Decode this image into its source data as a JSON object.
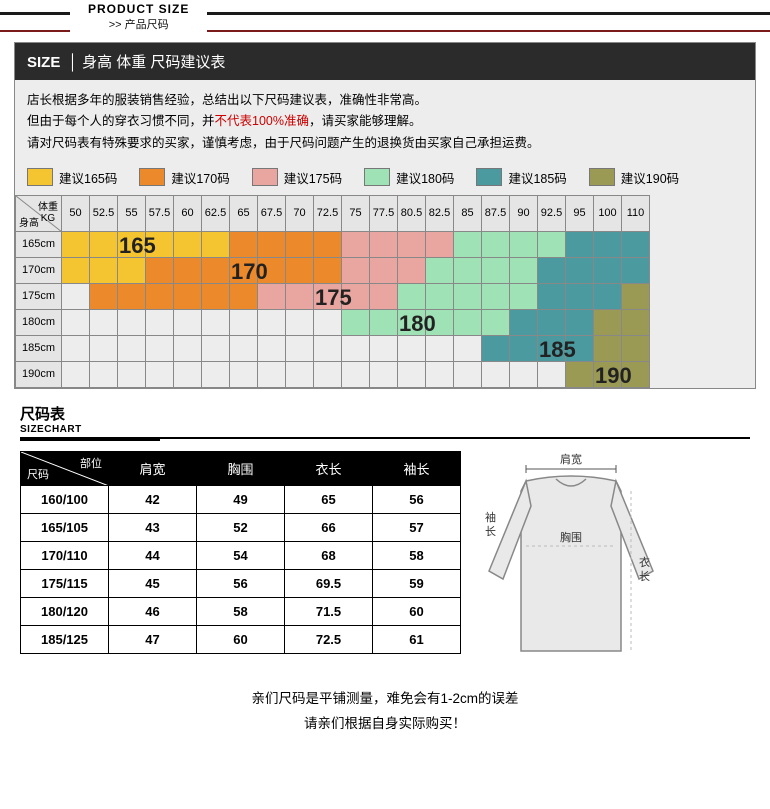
{
  "header": {
    "top": "PRODUCT SIZE",
    "sub": ">> 产品尺码"
  },
  "panel": {
    "title_label": "SIZE",
    "title_text": "身高 体重 尺码建议表",
    "desc_line1": "店长根据多年的服装销售经验，总结出以下尺码建议表，准确性非常高。",
    "desc_line2_a": "但由于每个人的穿衣习惯不同，并",
    "desc_line2_hl": "不代表100%准确",
    "desc_line2_b": "，请买家能够理解。",
    "desc_line3": "请对尺码表有特殊要求的买家，谨慎考虑，由于尺码问题产生的退换货由买家自己承担运费。"
  },
  "legend": [
    {
      "label": "建议165码",
      "color": "#f5c531"
    },
    {
      "label": "建议170码",
      "color": "#ec8a2b"
    },
    {
      "label": "建议175码",
      "color": "#e9a6a0"
    },
    {
      "label": "建议180码",
      "color": "#9fe2b5"
    },
    {
      "label": "建议185码",
      "color": "#4b9aa0"
    },
    {
      "label": "建议190码",
      "color": "#9a9a55"
    }
  ],
  "rec": {
    "corner_top": "体重",
    "corner_unit": "KG",
    "corner_left": "身高",
    "weights": [
      "50",
      "52.5",
      "55",
      "57.5",
      "60",
      "62.5",
      "65",
      "67.5",
      "70",
      "72.5",
      "75",
      "77.5",
      "80.5",
      "82.5",
      "85",
      "87.5",
      "90",
      "92.5",
      "95",
      "100",
      "110"
    ],
    "heights": [
      "165cm",
      "170cm",
      "175cm",
      "180cm",
      "185cm",
      "190cm"
    ],
    "grid": [
      [
        0,
        0,
        0,
        0,
        0,
        0,
        1,
        1,
        1,
        1,
        2,
        2,
        2,
        2,
        3,
        3,
        3,
        3,
        4,
        4,
        4
      ],
      [
        0,
        0,
        0,
        1,
        1,
        1,
        1,
        1,
        1,
        1,
        2,
        2,
        2,
        3,
        3,
        3,
        3,
        4,
        4,
        4,
        4
      ],
      [
        -1,
        1,
        1,
        1,
        1,
        1,
        1,
        2,
        2,
        2,
        2,
        2,
        3,
        3,
        3,
        3,
        3,
        4,
        4,
        4,
        5
      ],
      [
        -1,
        -1,
        -1,
        -1,
        -1,
        -1,
        -1,
        -1,
        -1,
        -1,
        3,
        3,
        3,
        3,
        3,
        3,
        4,
        4,
        4,
        5,
        5
      ],
      [
        -1,
        -1,
        -1,
        -1,
        -1,
        -1,
        -1,
        -1,
        -1,
        -1,
        -1,
        -1,
        -1,
        -1,
        -1,
        4,
        4,
        4,
        4,
        5,
        5
      ],
      [
        -1,
        -1,
        -1,
        -1,
        -1,
        -1,
        -1,
        -1,
        -1,
        -1,
        -1,
        -1,
        -1,
        -1,
        -1,
        -1,
        -1,
        -1,
        5,
        5,
        5
      ]
    ],
    "big_labels": [
      {
        "text": "165",
        "row": 0,
        "col": 2
      },
      {
        "text": "170",
        "row": 1,
        "col": 6
      },
      {
        "text": "175",
        "row": 2,
        "col": 9
      },
      {
        "text": "180",
        "row": 3,
        "col": 12
      },
      {
        "text": "185",
        "row": 4,
        "col": 17
      },
      {
        "text": "190",
        "row": 5,
        "col": 19
      }
    ]
  },
  "sizechart": {
    "title_cn": "尺码表",
    "title_en": "SIZECHART",
    "corner_a": "部位",
    "corner_b": "尺码",
    "columns": [
      "肩宽",
      "胸围",
      "衣长",
      "袖长"
    ],
    "rows": [
      [
        "160/100",
        "42",
        "49",
        "65",
        "56"
      ],
      [
        "165/105",
        "43",
        "52",
        "66",
        "57"
      ],
      [
        "170/110",
        "44",
        "54",
        "68",
        "58"
      ],
      [
        "175/115",
        "45",
        "56",
        "69.5",
        "59"
      ],
      [
        "180/120",
        "46",
        "58",
        "71.5",
        "60"
      ],
      [
        "185/125",
        "47",
        "60",
        "72.5",
        "61"
      ]
    ]
  },
  "diagram": {
    "shoulder": "肩宽",
    "chest": "胸围",
    "sleeve": "袖长",
    "length": "衣长"
  },
  "footnote": {
    "l1": "亲们尺码是平铺测量，难免会有1-2cm的误差",
    "l2": "请亲们根据自身实际购买！"
  },
  "colors": {
    "palette": [
      "#f5c531",
      "#ec8a2b",
      "#e9a6a0",
      "#9fe2b5",
      "#4b9aa0",
      "#9a9a55"
    ],
    "cell_empty": "#ededed"
  }
}
